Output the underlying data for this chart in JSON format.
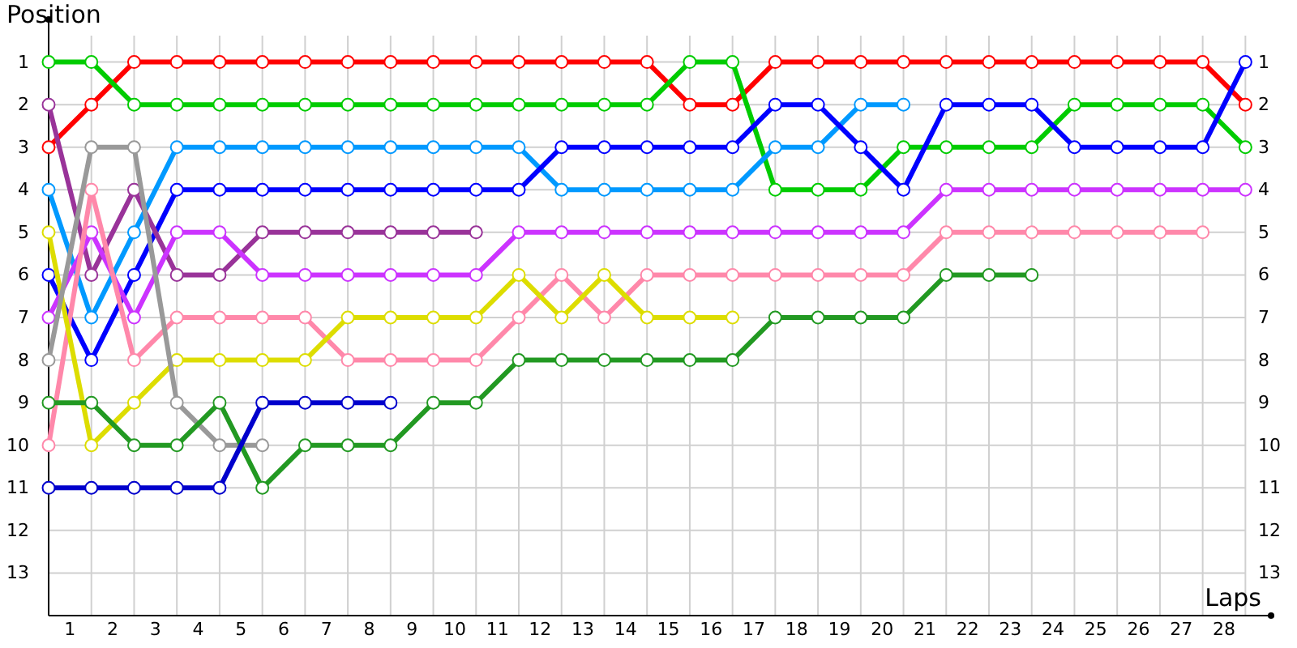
{
  "chart_data": {
    "type": "line",
    "xlabel": "Laps",
    "ylabel": "Position",
    "x": [
      0,
      1,
      2,
      3,
      4,
      5,
      6,
      7,
      8,
      9,
      10,
      11,
      12,
      13,
      14,
      15,
      16,
      17,
      18,
      19,
      20,
      21,
      22,
      23,
      24,
      25,
      26,
      27,
      28
    ],
    "series": [
      {
        "color": "#ff0000",
        "values": [
          3,
          2,
          1,
          1,
          1,
          1,
          1,
          1,
          1,
          1,
          1,
          1,
          1,
          1,
          1,
          2,
          2,
          1,
          1,
          1,
          1,
          1,
          1,
          1,
          1,
          1,
          1,
          1,
          2
        ]
      },
      {
        "color": "#00cc00",
        "values": [
          1,
          1,
          2,
          2,
          2,
          2,
          2,
          2,
          2,
          2,
          2,
          2,
          2,
          2,
          2,
          1,
          1,
          4,
          4,
          4,
          3,
          3,
          3,
          3,
          2,
          2,
          2,
          2,
          3
        ]
      },
      {
        "color": "#0099ff",
        "values": [
          4,
          7,
          5,
          3,
          3,
          3,
          3,
          3,
          3,
          3,
          3,
          3,
          4,
          4,
          4,
          4,
          4,
          3,
          3,
          2,
          2,
          null,
          null,
          null,
          null,
          null,
          null,
          null,
          null
        ]
      },
      {
        "color": "#0000ff",
        "values": [
          6,
          8,
          6,
          4,
          4,
          4,
          4,
          4,
          4,
          4,
          4,
          4,
          3,
          3,
          3,
          3,
          3,
          2,
          2,
          3,
          4,
          2,
          2,
          2,
          3,
          3,
          3,
          3,
          1
        ]
      },
      {
        "color": "#993399",
        "values": [
          2,
          6,
          4,
          6,
          6,
          5,
          5,
          5,
          5,
          5,
          5,
          null,
          null,
          null,
          null,
          null,
          null,
          null,
          null,
          null,
          null,
          null,
          null,
          null,
          null,
          null,
          null,
          null,
          null
        ]
      },
      {
        "color": "#cc33ff",
        "values": [
          7,
          5,
          7,
          5,
          5,
          6,
          6,
          6,
          6,
          6,
          6,
          5,
          5,
          5,
          5,
          5,
          5,
          5,
          5,
          5,
          5,
          4,
          4,
          4,
          4,
          4,
          4,
          4,
          4
        ]
      },
      {
        "color": "#ff88aa",
        "values": [
          10,
          4,
          8,
          7,
          7,
          7,
          7,
          8,
          8,
          8,
          8,
          7,
          6,
          7,
          6,
          6,
          6,
          6,
          6,
          6,
          6,
          5,
          5,
          5,
          5,
          5,
          5,
          5,
          null
        ]
      },
      {
        "color": "#dddd00",
        "values": [
          5,
          10,
          9,
          8,
          8,
          8,
          8,
          7,
          7,
          7,
          7,
          6,
          7,
          6,
          7,
          7,
          7,
          null,
          null,
          null,
          null,
          null,
          null,
          null,
          null,
          null,
          null,
          null,
          null
        ]
      },
      {
        "color": "#999999",
        "values": [
          8,
          3,
          3,
          9,
          10,
          10,
          null,
          null,
          null,
          null,
          null,
          null,
          null,
          null,
          null,
          null,
          null,
          null,
          null,
          null,
          null,
          null,
          null,
          null,
          null,
          null,
          null,
          null,
          null
        ]
      },
      {
        "color": "#229922",
        "values": [
          9,
          9,
          10,
          10,
          9,
          11,
          10,
          10,
          10,
          9,
          9,
          8,
          8,
          8,
          8,
          8,
          8,
          7,
          7,
          7,
          7,
          6,
          6,
          6,
          null,
          null,
          null,
          null,
          null
        ]
      },
      {
        "color": "#0000cc",
        "values": [
          11,
          11,
          11,
          11,
          11,
          9,
          9,
          9,
          9,
          null,
          null,
          null,
          null,
          null,
          null,
          null,
          null,
          null,
          null,
          null,
          null,
          null,
          null,
          null,
          null,
          null,
          null,
          null,
          null
        ]
      }
    ],
    "xlim": [
      0,
      28.6
    ],
    "xticks": [
      {
        "value": 0.5,
        "label": "1"
      },
      {
        "value": 1.5,
        "label": "2"
      },
      {
        "value": 2.5,
        "label": "3"
      },
      {
        "value": 3.5,
        "label": "4"
      },
      {
        "value": 4.5,
        "label": "5"
      },
      {
        "value": 5.5,
        "label": "6"
      },
      {
        "value": 6.5,
        "label": "7"
      },
      {
        "value": 7.5,
        "label": "8"
      },
      {
        "value": 8.5,
        "label": "9"
      },
      {
        "value": 9.5,
        "label": "10"
      },
      {
        "value": 10.5,
        "label": "11"
      },
      {
        "value": 11.5,
        "label": "12"
      },
      {
        "value": 12.5,
        "label": "13"
      },
      {
        "value": 13.5,
        "label": "14"
      },
      {
        "value": 14.5,
        "label": "15"
      },
      {
        "value": 15.5,
        "label": "16"
      },
      {
        "value": 16.5,
        "label": "17"
      },
      {
        "value": 17.5,
        "label": "18"
      },
      {
        "value": 18.5,
        "label": "19"
      },
      {
        "value": 19.5,
        "label": "20"
      },
      {
        "value": 20.5,
        "label": "21"
      },
      {
        "value": 21.5,
        "label": "22"
      },
      {
        "value": 22.5,
        "label": "23"
      },
      {
        "value": 23.5,
        "label": "24"
      },
      {
        "value": 24.5,
        "label": "25"
      },
      {
        "value": 25.5,
        "label": "26"
      },
      {
        "value": 26.5,
        "label": "27"
      },
      {
        "value": 27.5,
        "label": "28"
      },
      {
        "value": 1,
        "label": null
      },
      {
        "value": 2,
        "label": null
      },
      {
        "value": 3,
        "label": null
      },
      {
        "value": 4,
        "label": null
      },
      {
        "value": 5,
        "label": null
      },
      {
        "value": 6,
        "label": null
      },
      {
        "value": 7,
        "label": null
      },
      {
        "value": 8,
        "label": null
      },
      {
        "value": 9,
        "label": null
      },
      {
        "value": 10,
        "label": null
      },
      {
        "value": 11,
        "label": null
      },
      {
        "value": 12,
        "label": null
      },
      {
        "value": 13,
        "label": null
      },
      {
        "value": 14,
        "label": null
      },
      {
        "value": 15,
        "label": null
      },
      {
        "value": 16,
        "label": null
      },
      {
        "value": 17,
        "label": null
      },
      {
        "value": 18,
        "label": null
      },
      {
        "value": 19,
        "label": null
      },
      {
        "value": 20,
        "label": null
      },
      {
        "value": 21,
        "label": null
      },
      {
        "value": 22,
        "label": null
      },
      {
        "value": 23,
        "label": null
      },
      {
        "value": 24,
        "label": null
      },
      {
        "value": 25,
        "label": null
      },
      {
        "value": 26,
        "label": null
      },
      {
        "value": 27,
        "label": null
      },
      {
        "value": 28,
        "label": null
      }
    ],
    "ylim": [
      14,
      0
    ],
    "yticks": [
      1,
      2,
      3,
      4,
      5,
      6,
      7,
      8,
      9,
      10,
      11,
      12,
      13
    ],
    "y2lim": [
      14,
      0
    ],
    "y2ticks": [
      1,
      2,
      3,
      4,
      5,
      6,
      7,
      8,
      9,
      10,
      11,
      12,
      13
    ],
    "grid": true,
    "marker": "circle",
    "line_style": "solid"
  }
}
